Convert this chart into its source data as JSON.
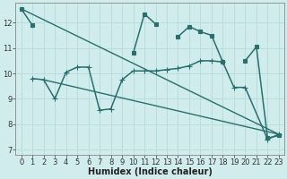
{
  "bg_color": "#d0ecec",
  "grid_color": "#b8dada",
  "line_color": "#2a6e6e",
  "xlabel": "Humidex (Indice chaleur)",
  "xlabel_fontsize": 7,
  "tick_fontsize": 6,
  "ylim": [
    6.8,
    12.8
  ],
  "xlim": [
    -0.5,
    23.5
  ],
  "yticks": [
    7,
    8,
    9,
    10,
    11,
    12
  ],
  "xticks": [
    0,
    1,
    2,
    3,
    4,
    5,
    6,
    7,
    8,
    9,
    10,
    11,
    12,
    13,
    14,
    15,
    16,
    17,
    18,
    19,
    20,
    21,
    22,
    23
  ],
  "lines": [
    {
      "x": [
        0,
        23
      ],
      "y": [
        12.55,
        7.6
      ],
      "marker": null,
      "markersize": 0,
      "linewidth": 1.0
    },
    {
      "x": [
        2,
        23
      ],
      "y": [
        9.75,
        7.6
      ],
      "marker": null,
      "markersize": 0,
      "linewidth": 1.0
    },
    {
      "x": [
        0,
        1,
        2,
        3,
        4,
        5,
        6,
        7,
        8,
        9,
        10,
        11,
        12,
        13,
        14,
        15,
        16,
        17,
        18,
        19,
        20,
        21,
        22,
        23
      ],
      "y": [
        12.55,
        11.9,
        null,
        null,
        null,
        null,
        null,
        null,
        null,
        null,
        10.8,
        12.35,
        11.95,
        null,
        11.45,
        11.85,
        11.65,
        11.5,
        10.45,
        null,
        10.5,
        11.05,
        7.45,
        7.55
      ],
      "marker": "s",
      "markersize": 2.5,
      "linewidth": 1.1
    },
    {
      "x": [
        1,
        2,
        3,
        4,
        5,
        6,
        7,
        8,
        9,
        10,
        11,
        12,
        13,
        14,
        15,
        16,
        17,
        18,
        19,
        20,
        22,
        23
      ],
      "y": [
        9.8,
        9.75,
        9.0,
        10.05,
        10.25,
        10.25,
        8.55,
        8.6,
        9.75,
        10.1,
        10.1,
        10.1,
        10.15,
        10.2,
        10.3,
        10.5,
        10.5,
        10.45,
        9.45,
        9.45,
        7.4,
        7.6
      ],
      "marker": "+",
      "markersize": 4,
      "linewidth": 1.1
    }
  ]
}
